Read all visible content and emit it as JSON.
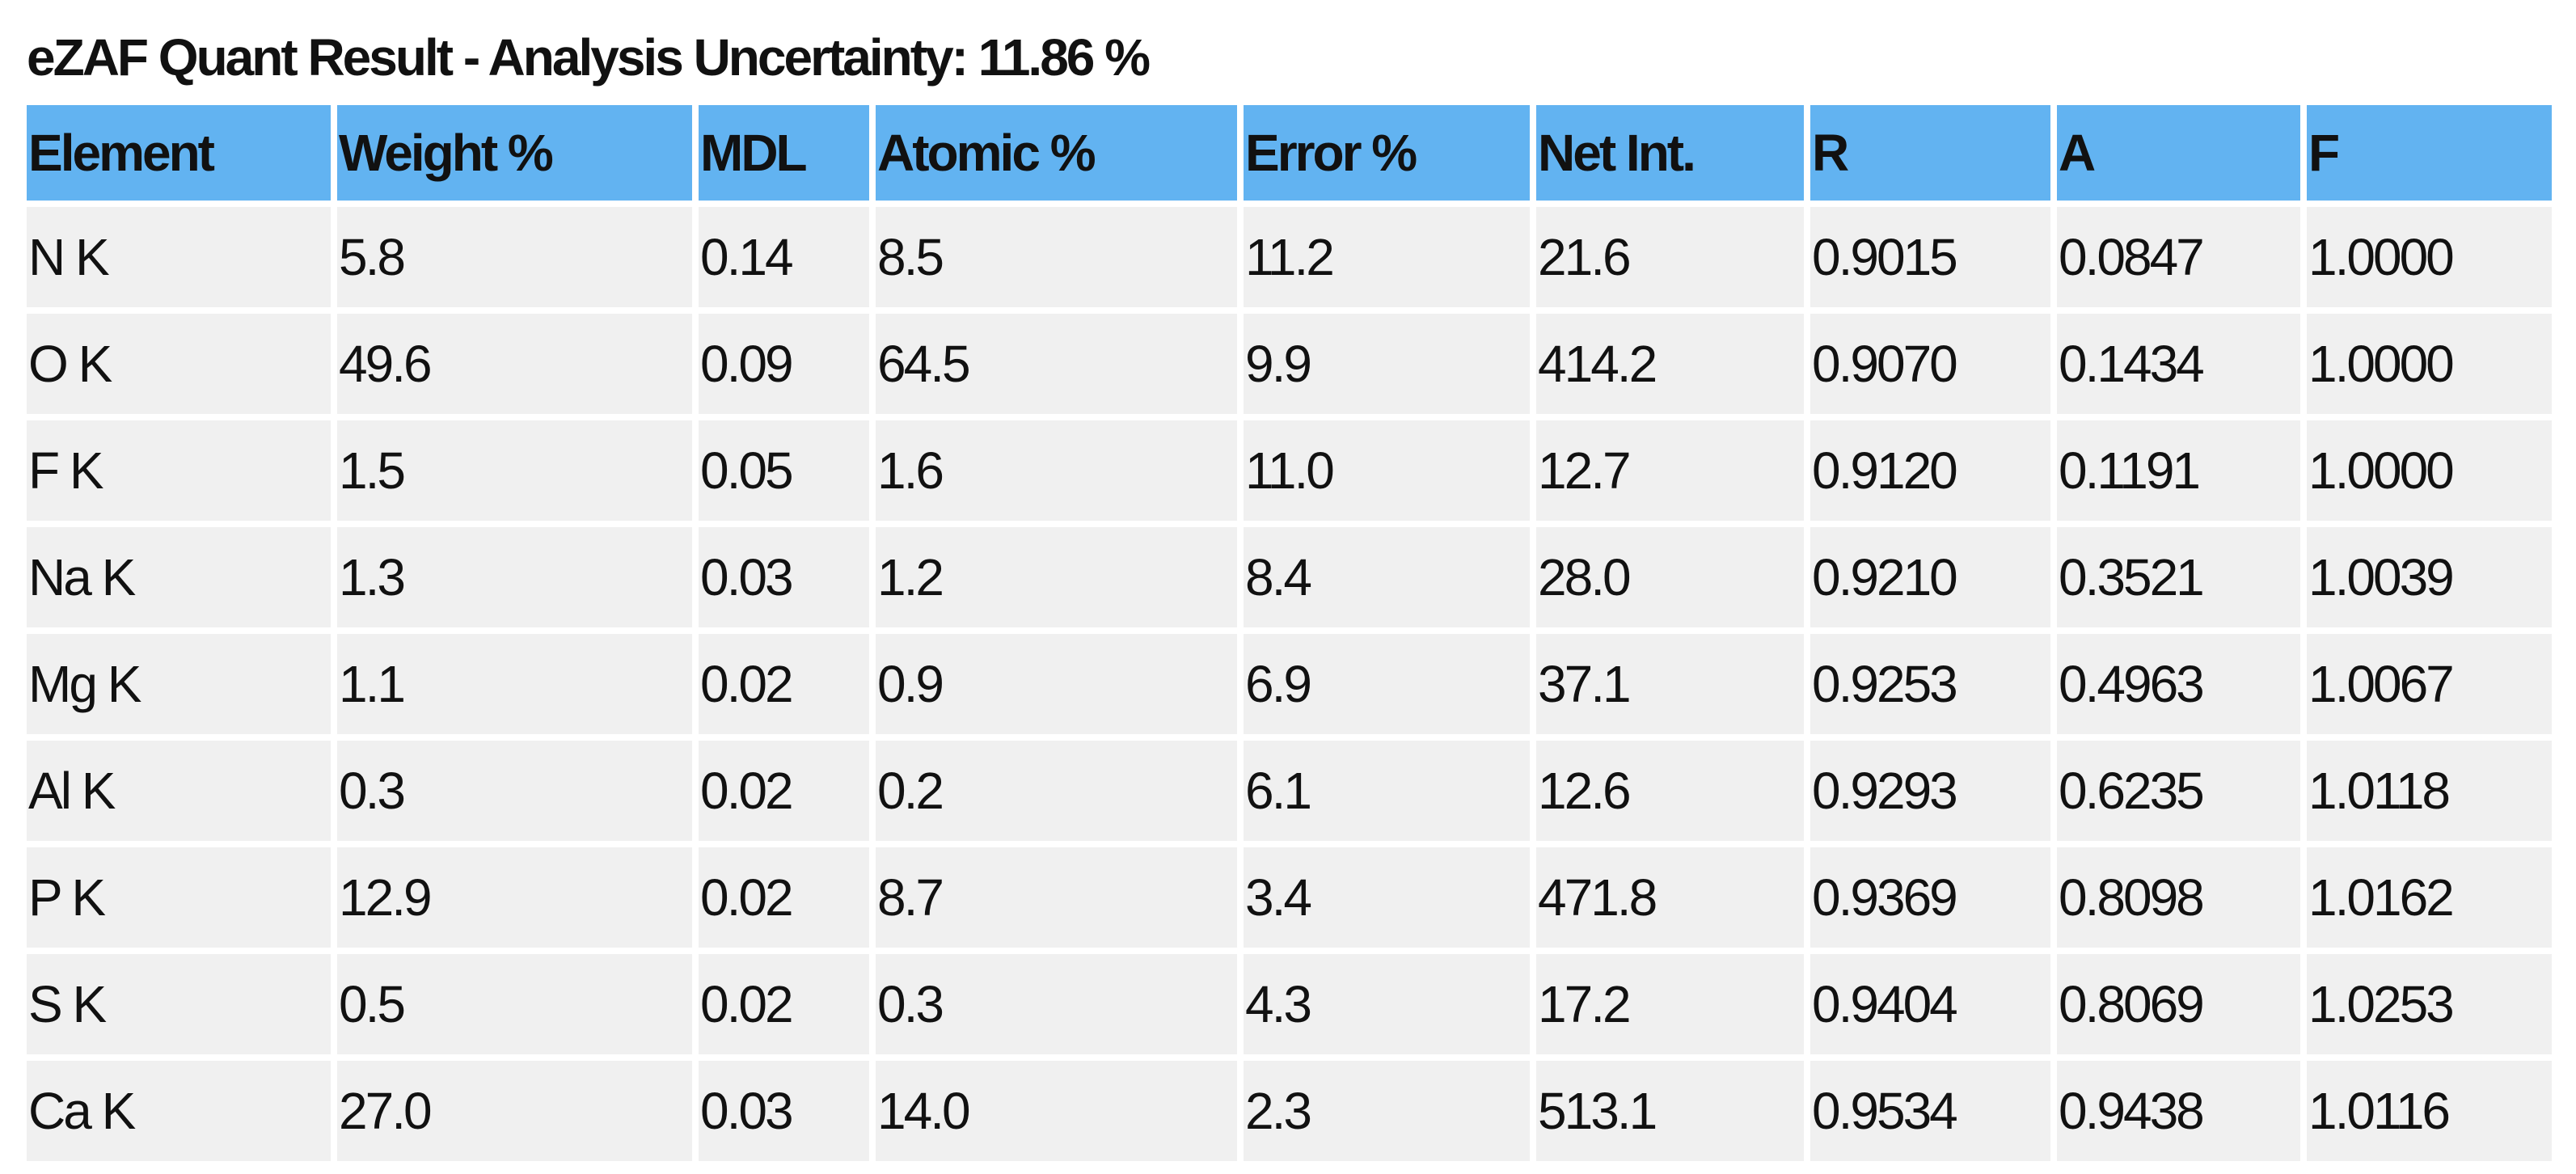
{
  "header": {
    "title": "eZAF Quant Result - Analysis Uncertainty: 11.86 %"
  },
  "table": {
    "columns": [
      "Element",
      "Weight %",
      "MDL",
      "Atomic %",
      "Error %",
      "Net Int.",
      "R",
      "A",
      "F"
    ],
    "rows": [
      [
        "N K",
        "5.8",
        "0.14",
        "8.5",
        "11.2",
        "21.6",
        "0.9015",
        "0.0847",
        "1.0000"
      ],
      [
        "O K",
        "49.6",
        "0.09",
        "64.5",
        "9.9",
        "414.2",
        "0.9070",
        "0.1434",
        "1.0000"
      ],
      [
        "F K",
        "1.5",
        "0.05",
        "1.6",
        "11.0",
        "12.7",
        "0.9120",
        "0.1191",
        "1.0000"
      ],
      [
        "Na K",
        "1.3",
        "0.03",
        "1.2",
        "8.4",
        "28.0",
        "0.9210",
        "0.3521",
        "1.0039"
      ],
      [
        "Mg K",
        "1.1",
        "0.02",
        "0.9",
        "6.9",
        "37.1",
        "0.9253",
        "0.4963",
        "1.0067"
      ],
      [
        "Al K",
        "0.3",
        "0.02",
        "0.2",
        "6.1",
        "12.6",
        "0.9293",
        "0.6235",
        "1.0118"
      ],
      [
        "P K",
        "12.9",
        "0.02",
        "8.7",
        "3.4",
        "471.8",
        "0.9369",
        "0.8098",
        "1.0162"
      ],
      [
        "S K",
        "0.5",
        "0.02",
        "0.3",
        "4.3",
        "17.2",
        "0.9404",
        "0.8069",
        "1.0253"
      ],
      [
        "Ca K",
        "27.0",
        "0.03",
        "14.0",
        "2.3",
        "513.1",
        "0.9534",
        "0.9438",
        "1.0116"
      ]
    ]
  }
}
